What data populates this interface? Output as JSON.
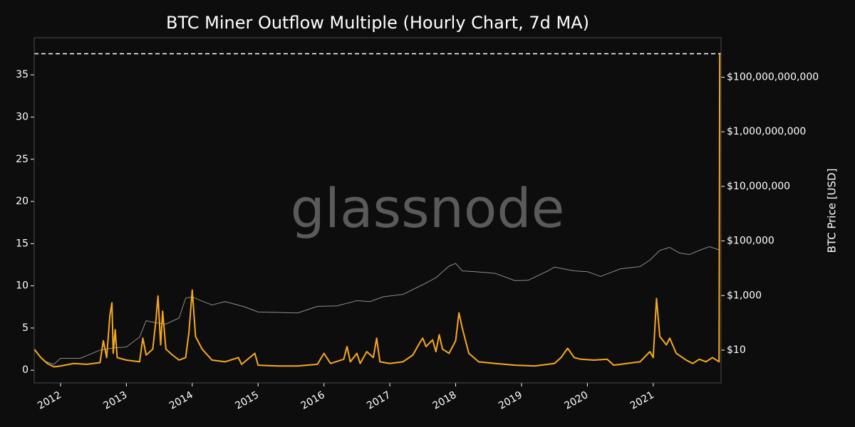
{
  "chart_data": {
    "type": "line",
    "title": "BTC Miner Outflow Multiple (Hourly Chart, 7d MA)",
    "watermark": "glassnode",
    "y2label": "BTC Price [USD]",
    "xlim": [
      2011.6,
      2022.03
    ],
    "xticks": [
      2012,
      2013,
      2014,
      2015,
      2016,
      2017,
      2018,
      2019,
      2020,
      2021
    ],
    "ylim": [
      -1.5,
      39.4
    ],
    "yticks": [
      0,
      5,
      10,
      15,
      20,
      25,
      30,
      35
    ],
    "y2lim": [
      0.63,
      2800000000000
    ],
    "y2log": true,
    "y2ticks": [
      {
        "value": 10,
        "label": "$10"
      },
      {
        "value": 1000,
        "label": "$1,000"
      },
      {
        "value": 100000,
        "label": "$100,000"
      },
      {
        "value": 10000000,
        "label": "$10,000,000"
      },
      {
        "value": 1000000000,
        "label": "$1,000,000,000"
      },
      {
        "value": 100000000000,
        "label": "$100,000,000,000"
      }
    ],
    "reference_line": 37.5,
    "series": [
      {
        "color": "#8c8c8c",
        "axis": "y2",
        "x": [
          2011.6,
          2011.75,
          2011.9,
          2012.0,
          2012.3,
          2012.6,
          2012.8,
          2013.0,
          2013.2,
          2013.3,
          2013.45,
          2013.6,
          2013.8,
          2013.9,
          2014.0,
          2014.1,
          2014.3,
          2014.5,
          2014.8,
          2015.0,
          2015.3,
          2015.6,
          2015.9,
          2016.2,
          2016.5,
          2016.7,
          2016.9,
          2017.2,
          2017.5,
          2017.7,
          2017.9,
          2018.0,
          2018.1,
          2018.3,
          2018.6,
          2018.9,
          2019.1,
          2019.4,
          2019.5,
          2019.8,
          2020.0,
          2020.2,
          2020.5,
          2020.8,
          2020.95,
          2021.1,
          2021.25,
          2021.4,
          2021.55,
          2021.7,
          2021.85,
          2022.0
        ],
        "values": [
          10,
          4,
          3,
          5,
          5,
          10,
          12,
          13,
          30,
          120,
          100,
          90,
          150,
          800,
          900,
          700,
          450,
          600,
          380,
          250,
          240,
          230,
          400,
          420,
          650,
          600,
          900,
          1100,
          2500,
          4500,
          12000,
          15000,
          8000,
          7500,
          6500,
          3500,
          3600,
          8000,
          11000,
          8000,
          7500,
          5000,
          9500,
          11500,
          20000,
          45000,
          58000,
          36000,
          32000,
          45000,
          62000,
          47000
        ]
      },
      {
        "color": "#f7a823",
        "x": [
          2011.6,
          2011.65,
          2011.7,
          2011.8,
          2011.9,
          2012.0,
          2012.2,
          2012.4,
          2012.6,
          2012.65,
          2012.7,
          2012.75,
          2012.78,
          2012.8,
          2012.83,
          2012.86,
          2013.0,
          2013.2,
          2013.25,
          2013.3,
          2013.4,
          2013.45,
          2013.48,
          2013.52,
          2013.55,
          2013.6,
          2013.7,
          2013.8,
          2013.9,
          2013.95,
          2014.0,
          2014.05,
          2014.15,
          2014.3,
          2014.5,
          2014.7,
          2014.75,
          2014.95,
          2015.0,
          2015.3,
          2015.6,
          2015.9,
          2016.0,
          2016.1,
          2016.3,
          2016.35,
          2016.4,
          2016.5,
          2016.55,
          2016.65,
          2016.75,
          2016.8,
          2016.85,
          2017.0,
          2017.2,
          2017.35,
          2017.45,
          2017.5,
          2017.55,
          2017.65,
          2017.7,
          2017.75,
          2017.8,
          2017.9,
          2018.0,
          2018.05,
          2018.1,
          2018.2,
          2018.35,
          2018.6,
          2018.9,
          2019.2,
          2019.5,
          2019.6,
          2019.7,
          2019.8,
          2019.9,
          2020.1,
          2020.3,
          2020.4,
          2020.6,
          2020.8,
          2020.95,
          2021.0,
          2021.05,
          2021.1,
          2021.2,
          2021.25,
          2021.35,
          2021.5,
          2021.6,
          2021.7,
          2021.8,
          2021.9,
          2022.0,
          2022.01
        ],
        "values": [
          2.5,
          2.0,
          1.5,
          0.8,
          0.4,
          0.5,
          0.8,
          0.7,
          0.9,
          3.5,
          1.5,
          6.5,
          8.0,
          2.0,
          4.8,
          1.5,
          1.2,
          1.0,
          3.8,
          1.8,
          2.5,
          6.0,
          8.8,
          3.0,
          7.0,
          2.5,
          1.8,
          1.2,
          1.5,
          4.5,
          9.5,
          4.0,
          2.5,
          1.2,
          1.0,
          1.5,
          0.7,
          2.0,
          0.6,
          0.5,
          0.5,
          0.7,
          2.0,
          0.8,
          1.3,
          2.8,
          1.0,
          2.0,
          0.8,
          2.2,
          1.5,
          3.8,
          1.0,
          0.8,
          1.0,
          1.8,
          3.2,
          3.8,
          2.8,
          3.6,
          2.2,
          4.2,
          2.5,
          2.0,
          3.5,
          6.8,
          5.0,
          2.0,
          1.0,
          0.8,
          0.6,
          0.5,
          0.8,
          1.5,
          2.6,
          1.5,
          1.3,
          1.2,
          1.3,
          0.6,
          0.8,
          1.0,
          2.2,
          1.5,
          8.5,
          4.0,
          3.0,
          3.8,
          2.0,
          1.2,
          0.8,
          1.3,
          1.0,
          1.5,
          1.0,
          37.5
        ]
      }
    ]
  }
}
